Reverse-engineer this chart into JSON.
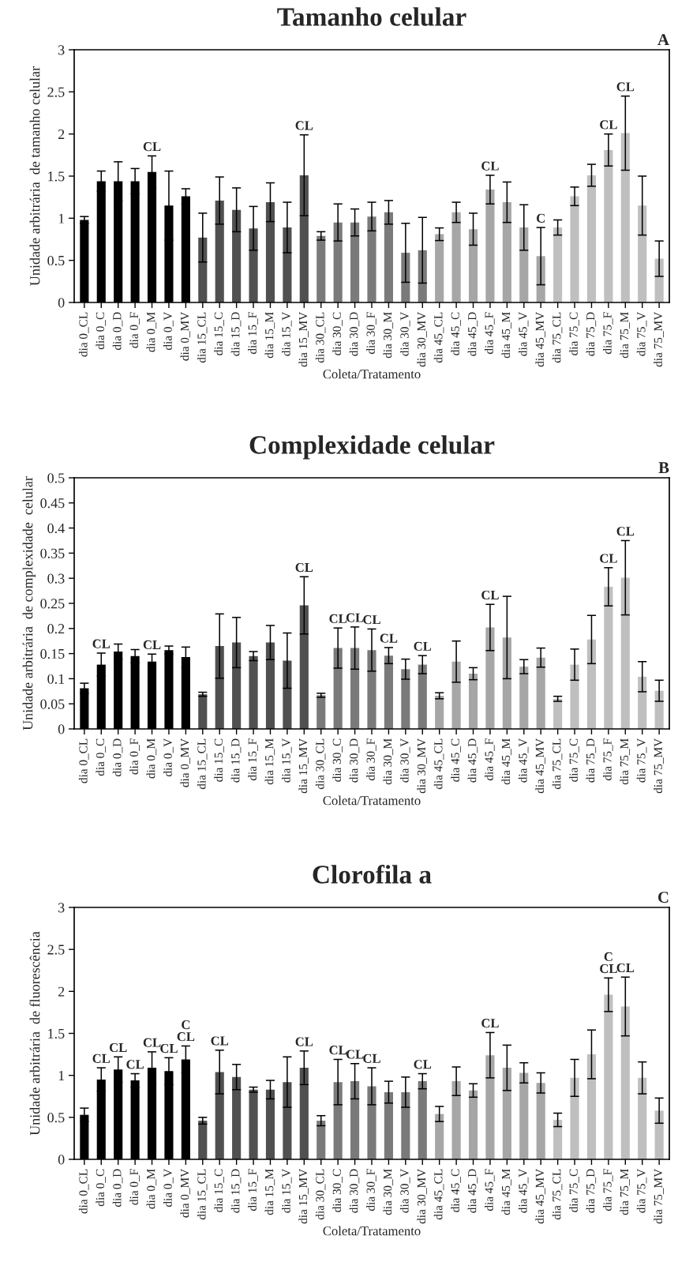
{
  "chart_data": [
    {
      "type": "bar",
      "title": "Tamanho celular",
      "xlabel": "Coleta/Tratamento",
      "ylabel": "Unidade arbitrária  de tamanho celular",
      "categories": [
        "dia 0_CL",
        "dia 0_C",
        "dia 0_D",
        "dia 0_F",
        "dia 0_M",
        "dia 0_V",
        "dia 0_MV",
        "dia 15_CL",
        "dia 15_C",
        "dia 15_D",
        "dia 15_F",
        "dia 15_M",
        "dia 15_V",
        "dia 15_MV",
        "dia 30_CL",
        "dia 30_C",
        "dia 30_D",
        "dia 30_F",
        "dia 30_M",
        "dia 30_V",
        "dia 30_MV",
        "dia 45_CL",
        "dia 45_C",
        "dia 45_D",
        "dia 45_F",
        "dia 45_M",
        "dia 45_V",
        "dia 45_MV",
        "dia 75_CL",
        "dia 75_C",
        "dia 75_D",
        "dia 75_F",
        "dia 75_M",
        "dia 75_V",
        "dia 75_MV"
      ],
      "values": [
        0.98,
        1.44,
        1.44,
        1.44,
        1.55,
        1.15,
        1.26,
        0.77,
        1.21,
        1.1,
        0.88,
        1.19,
        0.89,
        1.51,
        0.79,
        0.95,
        0.95,
        1.02,
        1.07,
        0.59,
        0.62,
        0.81,
        1.07,
        0.87,
        1.34,
        1.19,
        0.89,
        0.55,
        0.89,
        1.26,
        1.51,
        1.81,
        2.01,
        1.15,
        0.52
      ],
      "errors": [
        0.04,
        0.12,
        0.23,
        0.15,
        0.19,
        0.41,
        0.09,
        0.29,
        0.28,
        0.26,
        0.26,
        0.23,
        0.3,
        0.48,
        0.05,
        0.22,
        0.16,
        0.17,
        0.14,
        0.35,
        0.39,
        0.075,
        0.12,
        0.19,
        0.17,
        0.24,
        0.27,
        0.34,
        0.09,
        0.11,
        0.13,
        0.19,
        0.44,
        0.35,
        0.21
      ],
      "colors": [
        "#000000",
        "#000000",
        "#000000",
        "#000000",
        "#000000",
        "#000000",
        "#000000",
        "#505050",
        "#505050",
        "#505050",
        "#505050",
        "#505050",
        "#505050",
        "#505050",
        "#7a7a7a",
        "#7a7a7a",
        "#7a7a7a",
        "#7a7a7a",
        "#7a7a7a",
        "#7a7a7a",
        "#7a7a7a",
        "#a6a6a6",
        "#a6a6a6",
        "#a6a6a6",
        "#a6a6a6",
        "#a6a6a6",
        "#a6a6a6",
        "#a6a6a6",
        "#bfbfbf",
        "#bfbfbf",
        "#bfbfbf",
        "#bfbfbf",
        "#bfbfbf",
        "#bfbfbf",
        "#bfbfbf"
      ],
      "ylim": [
        0,
        3
      ],
      "yticks": [
        0,
        0.5,
        1,
        1.5,
        2,
        2.5,
        3
      ],
      "annotations": [
        "A",
        {
          "text": "CL",
          "x": "dia 0_M",
          "y": 1.74
        },
        {
          "text": "CL",
          "x": "dia 15_MV",
          "y": 1.99
        },
        {
          "text": "CL",
          "x": "dia 45_F",
          "y": 1.51
        },
        {
          "text": "C",
          "x": "dia 45_MV",
          "y": 0.89
        },
        {
          "text": "CL",
          "x": "dia 75_F",
          "y": 2.0
        },
        {
          "text": "CL",
          "x": "dia 75_M",
          "y": 2.45
        }
      ]
    },
    {
      "type": "bar",
      "title": "Complexidade celular",
      "xlabel": "Coleta/Tratamento",
      "ylabel": "Unidade arbitrária  de complexidade  celular",
      "categories": [
        "dia 0_CL",
        "dia 0_C",
        "dia 0_D",
        "dia 0_F",
        "dia 0_M",
        "dia 0_V",
        "dia 0_MV",
        "dia 15_CL",
        "dia 15_C",
        "dia 15_D",
        "dia 15_F",
        "dia 15_M",
        "dia 15_V",
        "dia 15_MV",
        "dia 30_CL",
        "dia 30_C",
        "dia 30_D",
        "dia 30_F",
        "dia 30_M",
        "dia 30_V",
        "dia 30_MV",
        "dia 45_CL",
        "dia 45_C",
        "dia 45_D",
        "dia 45_F",
        "dia 45_M",
        "dia 45_V",
        "dia 45_MV",
        "dia 75_CL",
        "dia 75_C",
        "dia 75_D",
        "dia 75_F",
        "dia 75_M",
        "dia 75_V",
        "dia 75_MV"
      ],
      "values": [
        0.081,
        0.128,
        0.154,
        0.145,
        0.134,
        0.157,
        0.143,
        0.069,
        0.165,
        0.172,
        0.145,
        0.172,
        0.136,
        0.246,
        0.067,
        0.161,
        0.161,
        0.157,
        0.146,
        0.119,
        0.128,
        0.066,
        0.134,
        0.11,
        0.202,
        0.182,
        0.124,
        0.142,
        0.06,
        0.128,
        0.178,
        0.283,
        0.301,
        0.104,
        0.076
      ],
      "errors": [
        0.01,
        0.023,
        0.015,
        0.013,
        0.015,
        0.008,
        0.02,
        0.004,
        0.064,
        0.05,
        0.009,
        0.034,
        0.055,
        0.057,
        0.004,
        0.04,
        0.042,
        0.042,
        0.016,
        0.02,
        0.018,
        0.006,
        0.041,
        0.012,
        0.046,
        0.082,
        0.014,
        0.019,
        0.005,
        0.031,
        0.048,
        0.038,
        0.074,
        0.03,
        0.021
      ],
      "colors": [
        "#000000",
        "#000000",
        "#000000",
        "#000000",
        "#000000",
        "#000000",
        "#000000",
        "#505050",
        "#505050",
        "#505050",
        "#505050",
        "#505050",
        "#505050",
        "#505050",
        "#7a7a7a",
        "#7a7a7a",
        "#7a7a7a",
        "#7a7a7a",
        "#7a7a7a",
        "#7a7a7a",
        "#7a7a7a",
        "#a6a6a6",
        "#a6a6a6",
        "#a6a6a6",
        "#a6a6a6",
        "#a6a6a6",
        "#a6a6a6",
        "#a6a6a6",
        "#bfbfbf",
        "#bfbfbf",
        "#bfbfbf",
        "#bfbfbf",
        "#bfbfbf",
        "#bfbfbf",
        "#bfbfbf"
      ],
      "ylim": [
        0,
        0.5
      ],
      "yticks": [
        0,
        0.05,
        0.1,
        0.15,
        0.2,
        0.25,
        0.3,
        0.35,
        0.4,
        0.45,
        0.5
      ],
      "annotations": [
        "B",
        {
          "text": "CL",
          "x": "dia 0_C",
          "y": 0.151
        },
        {
          "text": "CL",
          "x": "dia 0_M",
          "y": 0.149
        },
        {
          "text": "CL",
          "x": "dia 15_MV",
          "y": 0.303
        },
        {
          "text": "CL",
          "x": "dia 30_C",
          "y": 0.201
        },
        {
          "text": "CL",
          "x": "dia 30_D",
          "y": 0.203
        },
        {
          "text": "CL",
          "x": "dia 30_F",
          "y": 0.199
        },
        {
          "text": "CL",
          "x": "dia 30_M",
          "y": 0.162
        },
        {
          "text": "CL",
          "x": "dia 30_MV",
          "y": 0.146
        },
        {
          "text": "CL",
          "x": "dia 45_F",
          "y": 0.248
        },
        {
          "text": "CL",
          "x": "dia 75_F",
          "y": 0.321
        },
        {
          "text": "CL",
          "x": "dia 75_M",
          "y": 0.375
        }
      ]
    },
    {
      "type": "bar",
      "title": "Clorofila a",
      "xlabel": "Coleta/Tratamento",
      "ylabel": "Unidade arbitrária  de fluorescência",
      "categories": [
        "dia 0_CL",
        "dia 0_C",
        "dia 0_D",
        "dia 0_F",
        "dia 0_M",
        "dia 0_V",
        "dia 0_MV",
        "dia 15_CL",
        "dia 15_C",
        "dia 15_D",
        "dia 15_F",
        "dia 15_M",
        "dia 15_V",
        "dia 15_MV",
        "dia 30_CL",
        "dia 30_C",
        "dia 30_D",
        "dia 30_F",
        "dia 30_M",
        "dia 30_V",
        "dia 30_MV",
        "dia 45_CL",
        "dia 45_C",
        "dia 45_D",
        "dia 45_F",
        "dia 45_M",
        "dia 45_V",
        "dia 45_MV",
        "dia 75_CL",
        "dia 75_C",
        "dia 75_D",
        "dia 75_F",
        "dia 75_M",
        "dia 75_V",
        "dia 75_MV"
      ],
      "values": [
        0.53,
        0.95,
        1.07,
        0.94,
        1.09,
        1.05,
        1.19,
        0.46,
        1.04,
        0.98,
        0.83,
        0.83,
        0.92,
        1.09,
        0.46,
        0.92,
        0.93,
        0.87,
        0.8,
        0.8,
        0.93,
        0.54,
        0.93,
        0.82,
        1.24,
        1.09,
        1.03,
        0.91,
        0.47,
        0.97,
        1.25,
        1.96,
        1.82,
        0.97,
        0.58
      ],
      "errors": [
        0.08,
        0.14,
        0.15,
        0.08,
        0.19,
        0.16,
        0.16,
        0.04,
        0.26,
        0.15,
        0.03,
        0.11,
        0.3,
        0.2,
        0.06,
        0.27,
        0.21,
        0.22,
        0.13,
        0.18,
        0.09,
        0.09,
        0.17,
        0.08,
        0.27,
        0.27,
        0.12,
        0.12,
        0.08,
        0.22,
        0.29,
        0.2,
        0.35,
        0.19,
        0.15
      ],
      "colors": [
        "#000000",
        "#000000",
        "#000000",
        "#000000",
        "#000000",
        "#000000",
        "#000000",
        "#505050",
        "#505050",
        "#505050",
        "#505050",
        "#505050",
        "#505050",
        "#505050",
        "#7a7a7a",
        "#7a7a7a",
        "#7a7a7a",
        "#7a7a7a",
        "#7a7a7a",
        "#7a7a7a",
        "#7a7a7a",
        "#a6a6a6",
        "#a6a6a6",
        "#a6a6a6",
        "#a6a6a6",
        "#a6a6a6",
        "#a6a6a6",
        "#a6a6a6",
        "#bfbfbf",
        "#bfbfbf",
        "#bfbfbf",
        "#bfbfbf",
        "#bfbfbf",
        "#bfbfbf",
        "#bfbfbf"
      ],
      "ylim": [
        0,
        3
      ],
      "yticks": [
        0,
        0.5,
        1,
        1.5,
        2,
        2.5,
        3
      ],
      "annotations": [
        "C",
        {
          "text": "CL",
          "x": "dia 0_C",
          "y": 1.09
        },
        {
          "text": "CL",
          "x": "dia 0_D",
          "y": 1.22
        },
        {
          "text": "CL",
          "x": "dia 0_F",
          "y": 1.02
        },
        {
          "text": "CL",
          "x": "dia 0_M",
          "y": 1.28
        },
        {
          "text": "CL",
          "x": "dia 0_V",
          "y": 1.21
        },
        {
          "text": "C\nCL",
          "x": "dia 0_MV",
          "y": 1.35
        },
        {
          "text": "CL",
          "x": "dia 15_C",
          "y": 1.3
        },
        {
          "text": "CL",
          "x": "dia 15_MV",
          "y": 1.29
        },
        {
          "text": "CL",
          "x": "dia 30_C",
          "y": 1.19
        },
        {
          "text": "CL",
          "x": "dia 30_D",
          "y": 1.14
        },
        {
          "text": "CL",
          "x": "dia 30_F",
          "y": 1.09
        },
        {
          "text": "CL",
          "x": "dia 30_MV",
          "y": 1.02
        },
        {
          "text": "CL",
          "x": "dia 45_F",
          "y": 1.51
        },
        {
          "text": "C\nCL",
          "x": "dia 75_F",
          "y": 2.16
        },
        {
          "text": "CL",
          "x": "dia 75_M",
          "y": 2.17
        }
      ]
    }
  ]
}
